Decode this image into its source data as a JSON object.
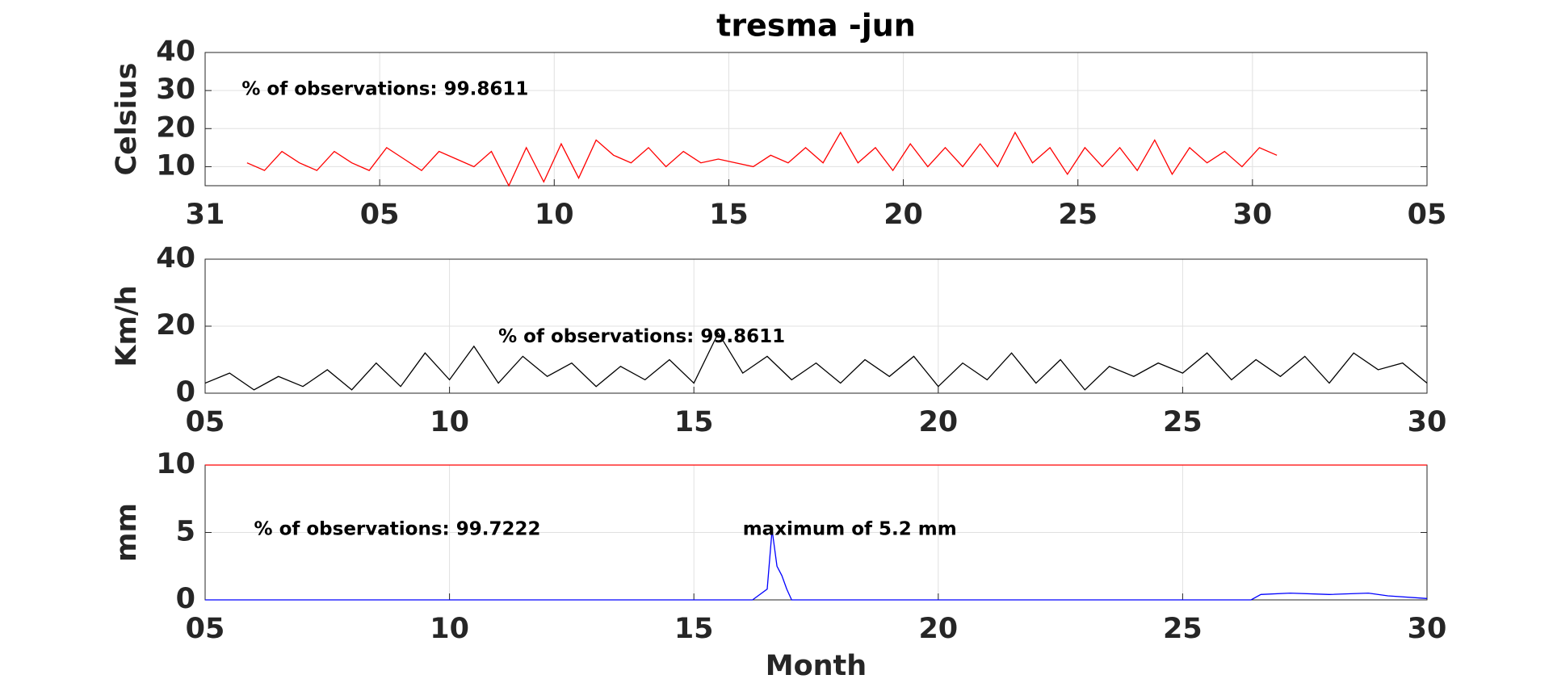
{
  "chart_data": [
    {
      "type": "line",
      "title": "tresma -jun",
      "ylabel": "Celsius",
      "grid": true,
      "annotations": [
        "% of observations: 99.8611"
      ],
      "xlim": [
        0,
        35
      ],
      "xticks": [
        {
          "value": 0,
          "label": "31"
        },
        {
          "value": 5,
          "label": "05"
        },
        10,
        15,
        20,
        25,
        30,
        {
          "value": 35,
          "label": "05"
        }
      ],
      "ylim": [
        5,
        40
      ],
      "yticks": [
        10,
        20,
        30,
        40
      ],
      "series": [
        {
          "color": "#ff0000",
          "x": [
            1.2,
            1.7,
            2.2,
            2.7,
            3.2,
            3.7,
            4.2,
            4.7,
            5.2,
            5.7,
            6.2,
            6.7,
            7.2,
            7.7,
            8.2,
            8.7,
            9.2,
            9.7,
            10.2,
            10.7,
            11.2,
            11.7,
            12.2,
            12.7,
            13.2,
            13.7,
            14.2,
            14.7,
            15.2,
            15.7,
            16.2,
            16.7,
            17.2,
            17.7,
            18.2,
            18.7,
            19.2,
            19.7,
            20.2,
            20.7,
            21.2,
            21.7,
            22.2,
            22.7,
            23.2,
            23.7,
            24.2,
            24.7,
            25.2,
            25.7,
            26.2,
            26.7,
            27.2,
            27.7,
            28.2,
            28.7,
            29.2,
            29.7,
            30.2,
            30.7
          ],
          "values": [
            11,
            9,
            14,
            11,
            9,
            14,
            11,
            9,
            15,
            12,
            9,
            14,
            12,
            10,
            14,
            5,
            15,
            6,
            16,
            7,
            17,
            13,
            11,
            15,
            10,
            14,
            11,
            12,
            11,
            10,
            13,
            11,
            15,
            11,
            19,
            11,
            15,
            9,
            16,
            10,
            15,
            10,
            16,
            10,
            19,
            11,
            15,
            8,
            15,
            10,
            15,
            9,
            17,
            8,
            15,
            11,
            14,
            10,
            15,
            13
          ]
        }
      ]
    },
    {
      "type": "line",
      "ylabel": "Km/h",
      "grid": true,
      "annotations": [
        "% of observations: 99.8611"
      ],
      "xlim": [
        5,
        30
      ],
      "xticks": [
        {
          "value": 5,
          "label": "05"
        },
        10,
        15,
        20,
        25,
        30
      ],
      "ylim": [
        0,
        40
      ],
      "yticks": [
        0,
        20,
        40
      ],
      "series": [
        {
          "color": "#000000",
          "x": [
            5,
            5.5,
            6,
            6.5,
            7,
            7.5,
            8,
            8.5,
            9,
            9.5,
            10,
            10.5,
            11,
            11.5,
            12,
            12.5,
            13,
            13.5,
            14,
            14.5,
            15,
            15.5,
            16,
            16.5,
            17,
            17.5,
            18,
            18.5,
            19,
            19.5,
            20,
            20.5,
            21,
            21.5,
            22,
            22.5,
            23,
            23.5,
            24,
            24.5,
            25,
            25.5,
            26,
            26.5,
            27,
            27.5,
            28,
            28.5,
            29,
            29.5,
            30
          ],
          "values": [
            3,
            6,
            1,
            5,
            2,
            7,
            1,
            9,
            2,
            12,
            4,
            14,
            3,
            11,
            5,
            9,
            2,
            8,
            4,
            10,
            3,
            18,
            6,
            11,
            4,
            9,
            3,
            10,
            5,
            11,
            2,
            9,
            4,
            12,
            3,
            10,
            1,
            8,
            5,
            9,
            6,
            12,
            4,
            10,
            5,
            11,
            3,
            12,
            7,
            9,
            3
          ]
        }
      ]
    },
    {
      "type": "line",
      "ylabel": "mm",
      "xlabel": "Month",
      "grid": true,
      "annotations": [
        "% of observations: 99.7222",
        "maximum of 5.2 mm"
      ],
      "xlim": [
        5,
        30
      ],
      "xticks": [
        {
          "value": 5,
          "label": "05"
        },
        10,
        15,
        20,
        25,
        30
      ],
      "ylim": [
        0,
        10
      ],
      "yticks": [
        0,
        5,
        10
      ],
      "series": [
        {
          "color": "#ff0000",
          "x": [
            5,
            30
          ],
          "values": [
            10,
            10
          ]
        },
        {
          "color": "#0000ff",
          "x": [
            5,
            16.2,
            16.5,
            16.6,
            16.7,
            16.8,
            16.9,
            17.0,
            26.4,
            26.6,
            27.2,
            28,
            28.8,
            29.2,
            30
          ],
          "values": [
            0,
            0,
            0.8,
            5.2,
            2.5,
            1.8,
            0.8,
            0,
            0,
            0.4,
            0.5,
            0.4,
            0.5,
            0.3,
            0.1
          ]
        }
      ]
    }
  ]
}
